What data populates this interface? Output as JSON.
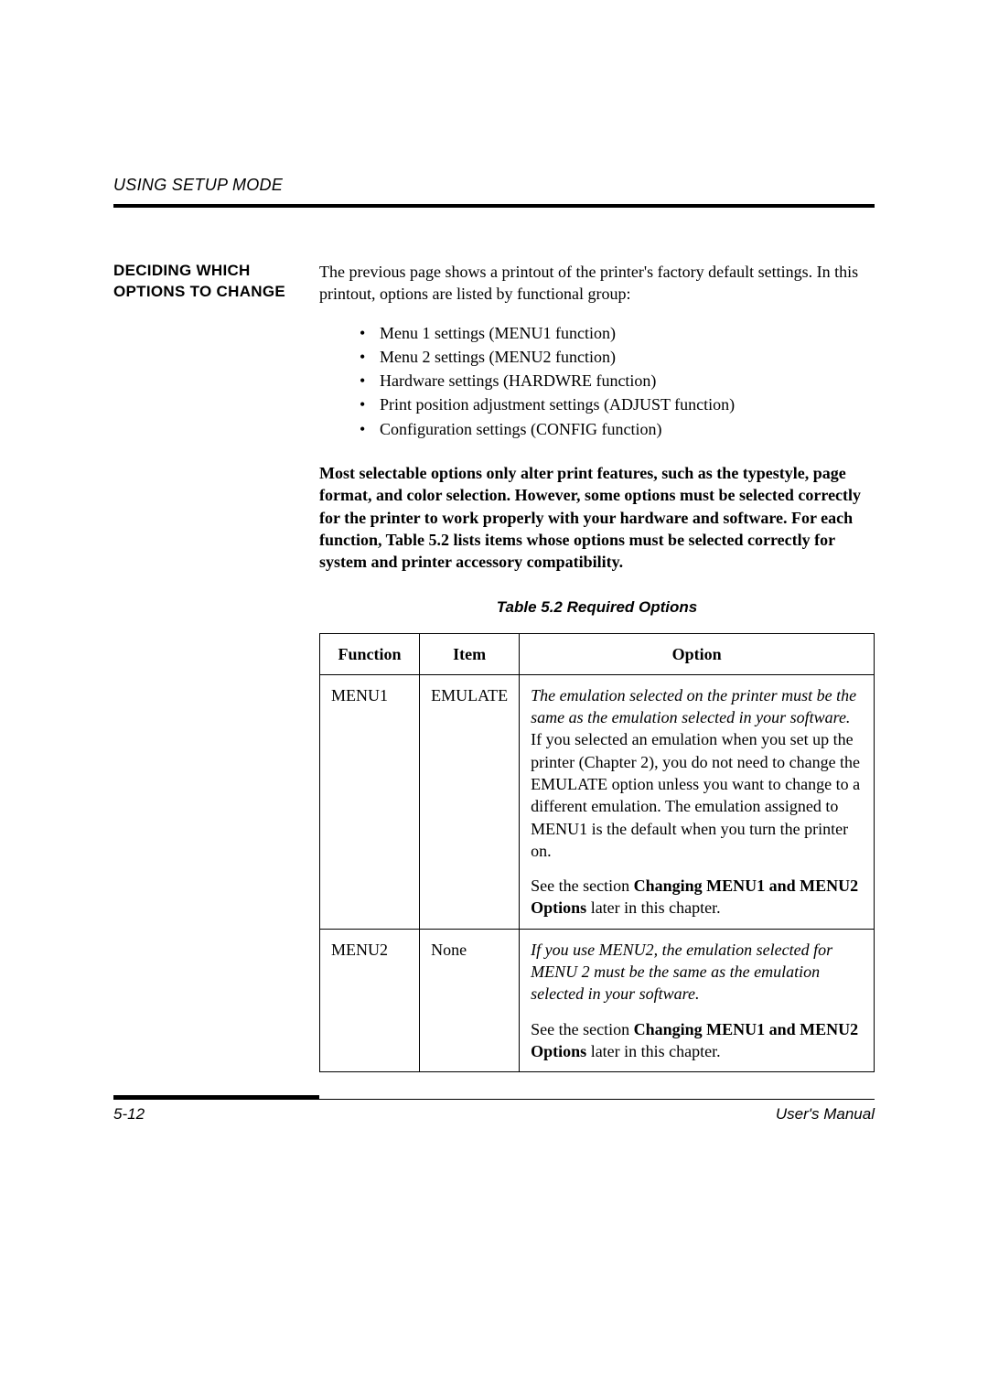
{
  "header": {
    "running_head": "USING SETUP MODE"
  },
  "side_heading": "DECIDING WHICH OPTIONS TO CHANGE",
  "intro": "The previous page shows a printout of the printer's factory default settings.  In this printout, options are listed by functional group:",
  "bullets": [
    "Menu 1 settings (MENU1 function)",
    "Menu 2 settings (MENU2 function)",
    "Hardware settings (HARDWRE function)",
    "Print position adjustment settings (ADJUST function)",
    "Configuration settings (CONFIG function)"
  ],
  "bold_para": "Most selectable options only alter print features, such as the typestyle, page format, and color selection.  However, some options must be selected correctly for the printer to work properly with your hardware and software.  For each function, Table 5.2 lists items whose options must be selected correctly for system and printer accessory compatibility.",
  "table": {
    "caption": "Table 5.2  Required Options",
    "columns": [
      "Function",
      "Item",
      "Option"
    ],
    "col_widths": [
      "18%",
      "18%",
      "64%"
    ],
    "rows": [
      {
        "function": "MENU1",
        "item": "EMULATE",
        "option": {
          "p1_italic": "The emulation selected on the printer must be the same as the emulation selected in your software.",
          "p1_rest": "  If you selected an emulation when you set up the printer (Chapter 2), you do not need to change the EMULATE option unless you want to change to a different emulation.  The emulation assigned to MENU1 is the default when you turn the printer on.",
          "p2_pre": "See the section ",
          "p2_bold": "Changing MENU1 and MENU2 Options",
          "p2_post": " later in this chapter."
        }
      },
      {
        "function": "MENU2",
        "item": "None",
        "option": {
          "p1_italic": "If you use MENU2, the  emulation selected for MENU 2 must be the same as the emulation selected in your software.",
          "p1_rest": "",
          "p2_pre": "See the section ",
          "p2_bold": "Changing MENU1 and MENU2 Options",
          "p2_post": " later in this chapter."
        }
      }
    ]
  },
  "footer": {
    "page_number": "5-12",
    "manual_label": "User's Manual"
  },
  "style": {
    "page_bg": "#ffffff",
    "text_color": "#000000",
    "rule_color": "#000000",
    "body_font_size_pt": 11,
    "side_heading_font_size_pt": 10,
    "caption_font_size_pt": 10
  }
}
